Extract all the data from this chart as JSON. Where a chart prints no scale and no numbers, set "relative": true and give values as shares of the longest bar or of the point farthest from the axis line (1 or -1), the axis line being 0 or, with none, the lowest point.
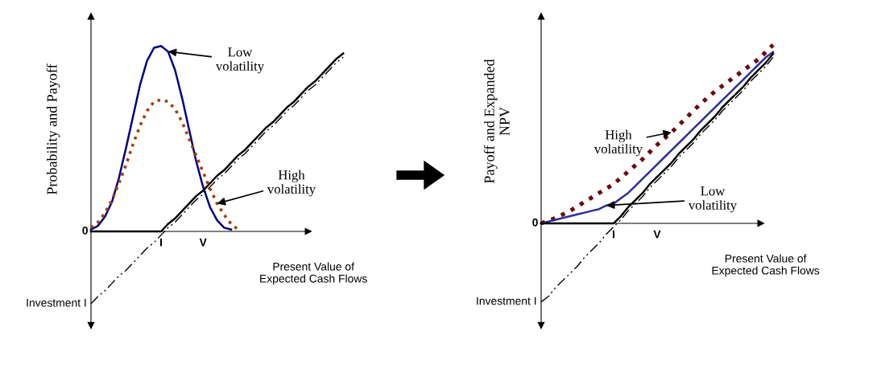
{
  "chart_data": [
    {
      "type": "line",
      "relative": true,
      "ylabel": "Probability and Payoff",
      "xlabel": "Present Value of\nExpected Cash Flows",
      "legend": false,
      "marker": "none",
      "categories": [
        null,
        null,
        null,
        null,
        null,
        null,
        null,
        null,
        null,
        null,
        "I",
        null,
        null,
        null,
        null,
        null,
        "V",
        null,
        null,
        null,
        null,
        null,
        null,
        null,
        null,
        null,
        null,
        null,
        null,
        null,
        null,
        null,
        null,
        null,
        null,
        null,
        null
      ],
      "annotations": [
        "0",
        "Investment I"
      ],
      "series": [
        {
          "name": "Low\nvolatility",
          "color": "#000080",
          "line_style": "solid",
          "values": [
            0.01,
            0.03,
            0.08,
            0.16,
            0.29,
            0.45,
            0.62,
            0.79,
            0.92,
            0.99,
            1.0,
            0.97,
            0.87,
            0.72,
            0.55,
            0.38,
            0.24,
            0.13,
            0.06,
            0.02,
            0.01,
            null,
            null,
            null,
            null,
            null,
            null,
            null,
            null,
            null,
            null,
            null,
            null,
            null,
            null,
            null,
            null
          ]
        },
        {
          "name": "High\nvolatility",
          "color": "#a0420a",
          "line_style": "dotted",
          "values": [
            0.02,
            0.05,
            0.1,
            0.17,
            0.26,
            0.36,
            0.47,
            0.57,
            0.65,
            0.7,
            0.71,
            0.7,
            0.66,
            0.59,
            0.5,
            0.41,
            0.32,
            0.23,
            0.15,
            0.09,
            0.04,
            0.01,
            null,
            null,
            null,
            null,
            null,
            null,
            null,
            null,
            null,
            null,
            null,
            null,
            null,
            null,
            null
          ]
        },
        {
          "color": "#000000",
          "line_style": "solid",
          "values": [
            0,
            0,
            0,
            0,
            0,
            0,
            0,
            0,
            0,
            0,
            0,
            0.04,
            0.07,
            0.11,
            0.15,
            0.19,
            0.22,
            0.26,
            0.3,
            0.33,
            0.37,
            0.41,
            0.44,
            0.48,
            0.52,
            0.56,
            0.59,
            0.63,
            0.67,
            0.7,
            0.74,
            0.78,
            0.81,
            0.85,
            0.89,
            0.93,
            0.96
          ]
        },
        {
          "color": "#000000",
          "line_style": "dashdot",
          "values": [
            -0.39,
            -0.35,
            -0.32,
            -0.28,
            -0.24,
            -0.21,
            -0.17,
            -0.13,
            -0.09,
            -0.06,
            -0.02,
            0.02,
            0.05,
            0.09,
            0.13,
            0.17,
            0.2,
            0.24,
            0.28,
            0.31,
            0.35,
            0.39,
            0.42,
            0.46,
            0.5,
            0.54,
            0.57,
            0.61,
            0.65,
            0.68,
            0.72,
            0.76,
            0.79,
            0.83,
            0.87,
            0.91,
            0.94
          ]
        }
      ]
    },
    {
      "type": "line",
      "relative": true,
      "ylabel": "Payoff and Expanded\nNPV",
      "xlabel": "Present Value of\nExpected Cash Flows",
      "legend": false,
      "marker": "none",
      "categories": [
        null,
        null,
        null,
        null,
        null,
        null,
        null,
        null,
        null,
        null,
        "I",
        null,
        null,
        null,
        null,
        null,
        "V",
        null,
        null,
        null,
        null,
        null,
        null,
        null,
        null,
        null,
        null,
        null,
        null,
        null,
        null,
        null,
        null
      ],
      "annotations": [
        "0",
        "Investment I"
      ],
      "series": [
        {
          "name": "High\nvolatility",
          "color": "#6b0a0a",
          "line_style": "dotted",
          "values": [
            0,
            0.015,
            0.03,
            0.05,
            0.07,
            0.095,
            0.12,
            0.145,
            0.17,
            0.195,
            0.22,
            0.255,
            0.29,
            0.325,
            0.36,
            0.4,
            0.44,
            0.475,
            0.51,
            0.55,
            0.59,
            0.63,
            0.67,
            0.705,
            0.74,
            0.77,
            0.8,
            0.83,
            0.86,
            0.89,
            0.92,
            0.96,
            1.0
          ]
        },
        {
          "name": "Low\nvolatility",
          "color": "#2e2e9a",
          "line_style": "solid",
          "values": [
            0,
            0.01,
            0.02,
            0.03,
            0.04,
            0.05,
            0.06,
            0.07,
            0.08,
            0.1,
            0.11,
            0.14,
            0.17,
            0.21,
            0.25,
            0.29,
            0.33,
            0.37,
            0.41,
            0.45,
            0.49,
            0.53,
            0.57,
            0.61,
            0.65,
            0.69,
            0.73,
            0.77,
            0.81,
            0.85,
            0.89,
            0.93,
            0.96
          ]
        },
        {
          "color": "#000000",
          "line_style": "solid",
          "values": [
            0,
            0,
            0,
            0,
            0,
            0,
            0,
            0,
            0,
            0,
            0,
            0.04,
            0.09,
            0.13,
            0.17,
            0.22,
            0.26,
            0.3,
            0.34,
            0.39,
            0.43,
            0.47,
            0.52,
            0.56,
            0.6,
            0.65,
            0.69,
            0.73,
            0.77,
            0.82,
            0.86,
            0.9,
            0.95
          ]
        },
        {
          "color": "#000000",
          "line_style": "dashdot",
          "values": [
            -0.44,
            -0.41,
            -0.36,
            -0.32,
            -0.28,
            -0.24,
            -0.19,
            -0.15,
            -0.11,
            -0.06,
            -0.02,
            0.02,
            0.07,
            0.11,
            0.15,
            0.2,
            0.24,
            0.28,
            0.32,
            0.37,
            0.41,
            0.45,
            0.5,
            0.54,
            0.58,
            0.63,
            0.67,
            0.71,
            0.75,
            0.8,
            0.84,
            0.88,
            0.93
          ]
        }
      ]
    }
  ]
}
